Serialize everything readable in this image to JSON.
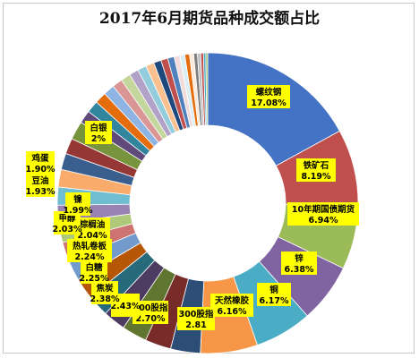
{
  "chart_data": {
    "type": "pie",
    "title": "2017年6月期货品种成交额占比",
    "donut": true,
    "slices": [
      {
        "label": "螺纹钢",
        "value": 17.08,
        "value_text": "17.08%",
        "color": "#4472C4"
      },
      {
        "label": "铁矿石",
        "value": 8.19,
        "value_text": "8.19%",
        "color": "#C0504D"
      },
      {
        "label": "10年期国债期货",
        "value": 6.94,
        "value_text": "6.94%",
        "color": "#9BBB59"
      },
      {
        "label": "锌",
        "value": 6.38,
        "value_text": "6.38%",
        "color": "#8064A2"
      },
      {
        "label": "铜",
        "value": 6.17,
        "value_text": "6.17%",
        "color": "#4BACC6"
      },
      {
        "label": "天然橡胶",
        "value": 6.16,
        "value_text": "6.16%",
        "color": "#F79646"
      },
      {
        "label": "",
        "value": 3.2,
        "value_text": "",
        "color": "#2C4D75"
      },
      {
        "label": "300股指",
        "value": 2.81,
        "value_text": "2.81",
        "color": "#772C2A"
      },
      {
        "label": "300股指",
        "value": 2.7,
        "value_text": "2.70%",
        "color": "#5F7530"
      },
      {
        "label": "",
        "value": 2.43,
        "value_text": "2.43%",
        "color": "#4D3B62"
      },
      {
        "label": "焦炭",
        "value": 2.38,
        "value_text": "2.38%",
        "color": "#276A7C"
      },
      {
        "label": "白糖",
        "value": 2.25,
        "value_text": "2.25%",
        "color": "#B65708"
      },
      {
        "label": "热轧卷板",
        "value": 2.24,
        "value_text": "2.24%",
        "color": "#729ACA"
      },
      {
        "label": "棕榈油",
        "value": 2.04,
        "value_text": "2.04%",
        "color": "#CD7371"
      },
      {
        "label": "甲醇",
        "value": 2.03,
        "value_text": "2.03%",
        "color": "#AFC97A"
      },
      {
        "label": "镍",
        "value": 1.99,
        "value_text": "1.99%",
        "color": "#9983B5"
      },
      {
        "label": "豆油",
        "value": 1.93,
        "value_text": "1.93%",
        "color": "#6FBDD1"
      },
      {
        "label": "鸡蛋",
        "value": 1.9,
        "value_text": "1.90%",
        "color": "#F9AB6B"
      },
      {
        "label": "",
        "value": 1.75,
        "value_text": "",
        "color": "#3A5F8F"
      },
      {
        "label": "",
        "value": 1.7,
        "value_text": "",
        "color": "#953735"
      },
      {
        "label": "白银",
        "value": 2.0,
        "value_text": "2%",
        "color": "#77933C"
      },
      {
        "label": "",
        "value": 1.4,
        "value_text": "",
        "color": "#604A7B"
      },
      {
        "label": "",
        "value": 1.3,
        "value_text": "",
        "color": "#31859C"
      },
      {
        "label": "",
        "value": 1.25,
        "value_text": "",
        "color": "#E46C0A"
      },
      {
        "label": "",
        "value": 1.2,
        "value_text": "",
        "color": "#8EB4E3"
      },
      {
        "label": "",
        "value": 1.1,
        "value_text": "",
        "color": "#D99694"
      },
      {
        "label": "",
        "value": 1.05,
        "value_text": "",
        "color": "#C3D69B"
      },
      {
        "label": "",
        "value": 1.0,
        "value_text": "",
        "color": "#B3A2C7"
      },
      {
        "label": "",
        "value": 0.95,
        "value_text": "",
        "color": "#93CDDD"
      },
      {
        "label": "",
        "value": 0.9,
        "value_text": "",
        "color": "#FAC090"
      },
      {
        "label": "",
        "value": 0.8,
        "value_text": "",
        "color": "#1F497D"
      },
      {
        "label": "",
        "value": 0.75,
        "value_text": "",
        "color": "#C0504D"
      },
      {
        "label": "",
        "value": 0.7,
        "value_text": "",
        "color": "#4F81BD"
      },
      {
        "label": "",
        "value": 0.6,
        "value_text": "",
        "color": "#F2DCDB"
      },
      {
        "label": "",
        "value": 0.55,
        "value_text": "",
        "color": "#DBEEF4"
      },
      {
        "label": "",
        "value": 0.5,
        "value_text": "",
        "color": "#E46C0A"
      },
      {
        "label": "",
        "value": 0.45,
        "value_text": "",
        "color": "#FDEADA"
      },
      {
        "label": "",
        "value": 0.4,
        "value_text": "",
        "color": "#7F7F7F"
      },
      {
        "label": "",
        "value": 0.35,
        "value_text": "",
        "color": "#BFBFBF"
      },
      {
        "label": "",
        "value": 0.3,
        "value_text": "",
        "color": "#C0504D"
      },
      {
        "label": "",
        "value": 0.25,
        "value_text": "",
        "color": "#4BACC6"
      },
      {
        "label": "",
        "value": 0.2,
        "value_text": "",
        "color": "#9BBB59"
      }
    ],
    "legend": "none",
    "label_style": "yellow-callout"
  }
}
